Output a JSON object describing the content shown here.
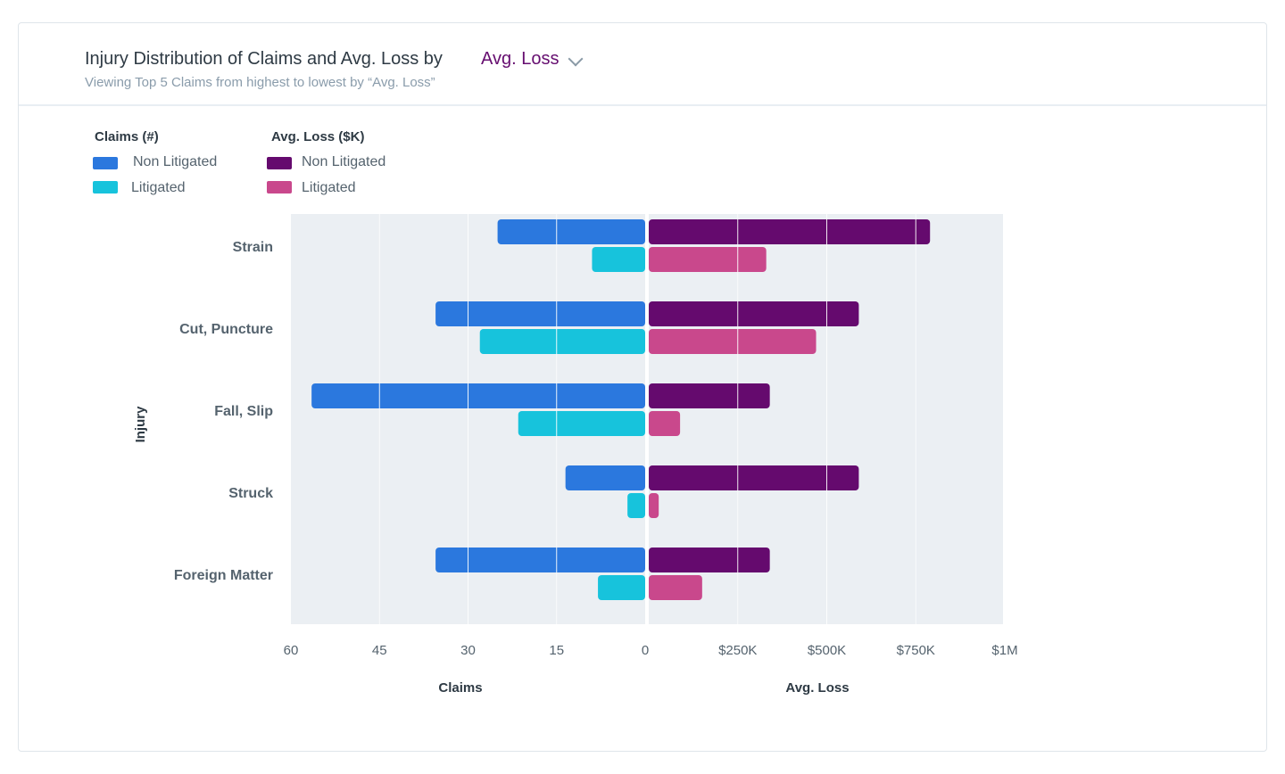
{
  "header": {
    "title": "Injury Distribution of Claims and Avg. Loss by",
    "selector_value": "Avg. Loss",
    "subtitle": "Viewing Top 5 Claims from highest to lowest by “Avg. Loss”"
  },
  "legend": {
    "claims": {
      "title": "Claims (#)",
      "items": [
        {
          "label": "Non Litigated",
          "color": "#2b78de"
        },
        {
          "label": "Litigated",
          "color": "#17c3dc"
        }
      ]
    },
    "loss": {
      "title": "Avg. Loss ($K)",
      "items": [
        {
          "label": "Non Litigated",
          "color": "#650a6e"
        },
        {
          "label": "Litigated",
          "color": "#c9488c"
        }
      ]
    }
  },
  "chart_data": {
    "type": "bar",
    "orientation": "horizontal-diverging",
    "ylabel": "Injury",
    "categories": [
      "Strain",
      "Cut, Puncture",
      "Fall, Slip",
      "Struck",
      "Foreign Matter"
    ],
    "claims": {
      "xlabel": "Claims",
      "xlim": [
        60,
        0
      ],
      "ticks": [
        "60",
        "45",
        "30",
        "15",
        "0"
      ],
      "series": [
        {
          "name": "Non Litigated",
          "color": "#2b78de",
          "values": [
            25,
            35.5,
            56.5,
            13.5,
            35.5
          ]
        },
        {
          "name": "Litigated",
          "color": "#17c3dc",
          "values": [
            9,
            28,
            21.5,
            3,
            8
          ]
        }
      ]
    },
    "loss": {
      "xlabel": "Avg. Loss",
      "xlim": [
        0,
        1000000
      ],
      "ticks": [
        "$250K",
        "$500K",
        "$750K",
        "$1M"
      ],
      "series": [
        {
          "name": "Non Litigated",
          "color": "#650a6e",
          "values": [
            790000,
            590000,
            340000,
            590000,
            340000
          ]
        },
        {
          "name": "Litigated",
          "color": "#c9488c",
          "values": [
            330000,
            470000,
            88000,
            28000,
            150000
          ]
        }
      ]
    },
    "grid": true
  }
}
